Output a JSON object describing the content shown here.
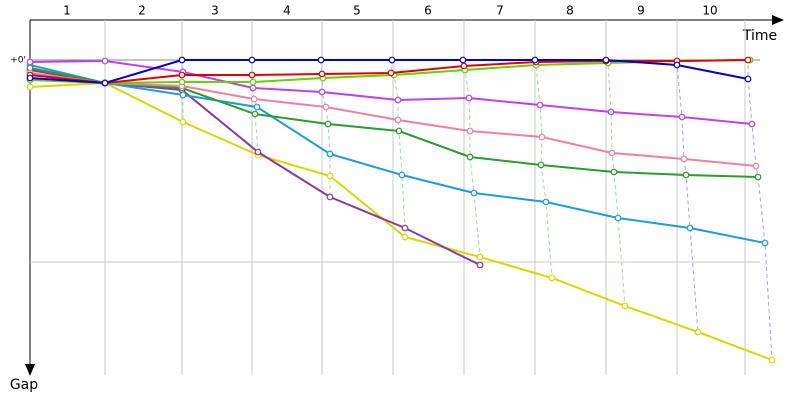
{
  "chart_data": {
    "type": "line",
    "x_label": "Time",
    "y_label": "Gap",
    "xlim": [
      0,
      750
    ],
    "ylim": [
      -40,
      315
    ],
    "xticks": [
      {
        "value": 37,
        "label": "1"
      },
      {
        "value": 112,
        "label": "2"
      },
      {
        "value": 185,
        "label": "3"
      },
      {
        "value": 257,
        "label": "4"
      },
      {
        "value": 327,
        "label": "5"
      },
      {
        "value": 398,
        "label": "6"
      },
      {
        "value": 470,
        "label": "7"
      },
      {
        "value": 540,
        "label": "8"
      },
      {
        "value": 611,
        "label": "9"
      },
      {
        "value": 680,
        "label": "10"
      }
    ],
    "xgrid": [
      75,
      152,
      222,
      292,
      363,
      434,
      505,
      576,
      647,
      715
    ],
    "yticks": [
      {
        "value": 0,
        "label": "+0'"
      },
      {
        "value": 202,
        "label": null
      }
    ],
    "series": [
      {
        "color": "#d8d800",
        "x": [
          0,
          75,
          153,
          228,
          300,
          375,
          450,
          522,
          595,
          668,
          742
        ],
        "values": [
          27,
          23,
          62,
          95,
          116,
          177,
          197,
          218,
          246,
          272,
          300
        ]
      },
      {
        "color": "#8b3a9b",
        "x": [
          0,
          75,
          152,
          228,
          300,
          375,
          450
        ],
        "values": [
          10,
          23,
          30,
          92,
          137,
          168,
          205
        ]
      },
      {
        "color": "#1e9be0",
        "x": [
          0,
          75,
          153,
          227,
          300,
          372,
          444,
          516,
          588,
          660,
          735
        ],
        "values": [
          5,
          23,
          35,
          47,
          94,
          115,
          133,
          142,
          158,
          168,
          183
        ]
      },
      {
        "color": "#2a9d2a",
        "x": [
          0,
          75,
          152,
          225,
          298,
          369,
          440,
          511,
          584,
          656,
          728
        ],
        "values": [
          8,
          23,
          28,
          54,
          64,
          71,
          97,
          105,
          112,
          115,
          117
        ]
      },
      {
        "color": "#f07fa7",
        "x": [
          0,
          75,
          152,
          224,
          296,
          368,
          440,
          512,
          582,
          654,
          726
        ],
        "values": [
          13,
          23,
          26,
          39,
          47,
          60,
          71,
          77,
          93,
          99,
          106
        ]
      },
      {
        "color": "#c040f0",
        "x": [
          0,
          75,
          153,
          223,
          292,
          368,
          439,
          510,
          581,
          652,
          722
        ],
        "values": [
          2,
          1,
          12,
          28,
          32,
          40,
          38,
          45,
          52,
          57,
          64
        ]
      },
      {
        "color": "#66d000",
        "x": [
          0,
          75,
          152,
          223,
          293,
          364,
          435,
          506,
          578,
          647,
          720
        ],
        "values": [
          20,
          23,
          22,
          22,
          18,
          15,
          10,
          5,
          3,
          1,
          0
        ]
      },
      {
        "color": "#e00000",
        "x": [
          0,
          75,
          152,
          222,
          292,
          361,
          434,
          506,
          576,
          647,
          718
        ],
        "values": [
          15,
          23,
          15,
          15,
          14,
          13,
          6,
          2,
          1,
          1,
          0
        ]
      },
      {
        "color": "#0000d0",
        "x": [
          0,
          75,
          152,
          222,
          291,
          362,
          433,
          505,
          576,
          647,
          718
        ],
        "values": [
          18,
          23,
          0,
          0,
          0,
          0,
          0,
          0,
          0,
          5,
          19
        ]
      }
    ]
  }
}
